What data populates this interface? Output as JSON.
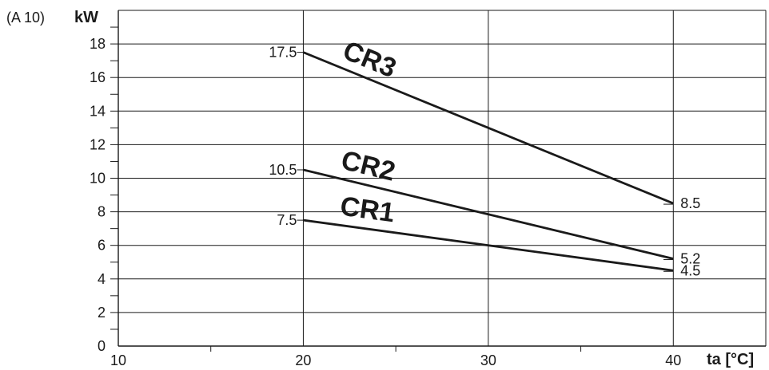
{
  "chart_data": {
    "type": "line",
    "figure_ref": "(A 10)",
    "ylabel": "kW",
    "xlabel": "ta [°C]",
    "xlim": [
      10,
      45
    ],
    "ylim": [
      0,
      20
    ],
    "xticks": [
      10,
      20,
      30,
      40
    ],
    "yticks": [
      0,
      2,
      4,
      6,
      8,
      10,
      12,
      14,
      16,
      18
    ],
    "grid": true,
    "series": [
      {
        "name": "CR3",
        "x": [
          20,
          40
        ],
        "y": [
          17.5,
          8.5
        ],
        "labels": [
          "17.5",
          "8.5"
        ]
      },
      {
        "name": "CR2",
        "x": [
          20,
          40
        ],
        "y": [
          10.5,
          5.2
        ],
        "labels": [
          "10.5",
          "5.2"
        ]
      },
      {
        "name": "CR1",
        "x": [
          20,
          40
        ],
        "y": [
          7.5,
          4.5
        ],
        "labels": [
          "7.5",
          "4.5"
        ]
      }
    ]
  }
}
